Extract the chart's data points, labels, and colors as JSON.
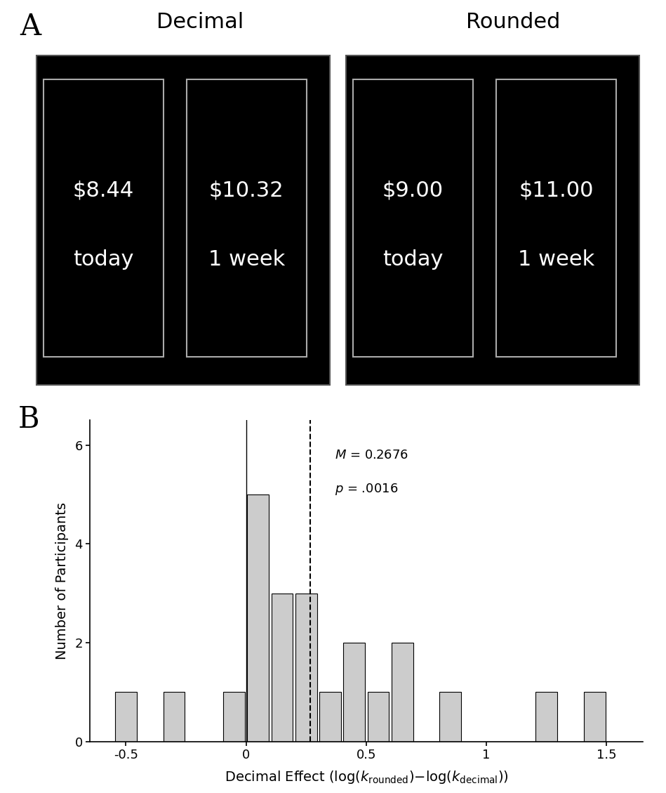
{
  "panel_A_label": "A",
  "panel_B_label": "B",
  "decimal_title": "Decimal",
  "rounded_title": "Rounded",
  "cards": [
    {
      "amount": "$8.44",
      "time": "today"
    },
    {
      "amount": "$10.32",
      "time": "1 week"
    },
    {
      "amount": "$9.00",
      "time": "today"
    },
    {
      "amount": "$11.00",
      "time": "1 week"
    }
  ],
  "bar_centers": [
    -0.5,
    -0.3,
    -0.05,
    0.05,
    0.15,
    0.25,
    0.35,
    0.45,
    0.55,
    0.65,
    0.85,
    1.25,
    1.45
  ],
  "bar_heights": [
    1,
    1,
    1,
    5,
    3,
    3,
    1,
    2,
    1,
    2,
    1,
    1,
    1
  ],
  "bar_width": 0.09,
  "bar_color": "#cccccc",
  "bar_edgecolor": "#000000",
  "vline_solid_x": 0.0,
  "vline_dashed_x": 0.2676,
  "mean_label": "M = 0.2676",
  "p_label": "p = .0016",
  "ylabel": "Number of Participants",
  "xlim": [
    -0.65,
    1.65
  ],
  "ylim": [
    0,
    6.5
  ],
  "yticks": [
    0,
    2,
    4,
    6
  ],
  "xticks": [
    -0.5,
    0.0,
    0.5,
    1.0,
    1.5
  ],
  "xtick_labels": [
    "-0.5",
    "0",
    "0.5",
    "1",
    "1.5"
  ],
  "bg_color": "#ffffff",
  "card_bg": "#000000",
  "card_border": "#aaaaaa",
  "screen_border": "#555555",
  "card_text_fontsize": 22,
  "title_fontsize": 22,
  "label_fontsize": 30
}
